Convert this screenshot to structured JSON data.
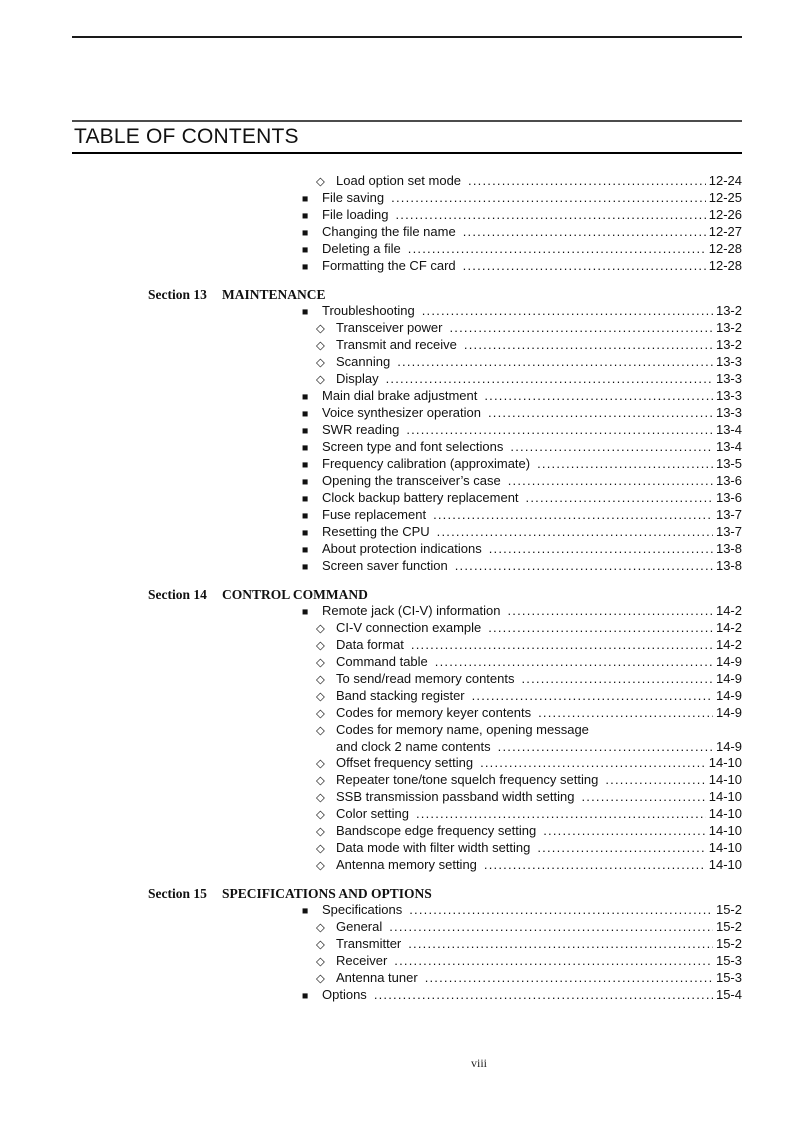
{
  "page": {
    "title": "TABLE OF CONTENTS",
    "page_number": "viii"
  },
  "bullets": {
    "main": "■",
    "sub": "◇"
  },
  "sections": [
    {
      "label": "",
      "title": "",
      "entries": [
        {
          "level": "sub",
          "text": "Load option set mode",
          "page": "12-24"
        },
        {
          "level": "main",
          "text": "File saving",
          "page": "12-25"
        },
        {
          "level": "main",
          "text": "File loading",
          "page": "12-26"
        },
        {
          "level": "main",
          "text": "Changing the file name",
          "page": "12-27"
        },
        {
          "level": "main",
          "text": "Deleting a file",
          "page": "12-28"
        },
        {
          "level": "main",
          "text": "Formatting the CF card",
          "page": "12-28"
        }
      ]
    },
    {
      "label": "Section 13",
      "title": "MAINTENANCE",
      "entries": [
        {
          "level": "main",
          "text": "Troubleshooting",
          "page": "13-2"
        },
        {
          "level": "sub",
          "text": "Transceiver power",
          "page": "13-2"
        },
        {
          "level": "sub",
          "text": "Transmit and receive",
          "page": "13-2"
        },
        {
          "level": "sub",
          "text": "Scanning",
          "page": "13-3"
        },
        {
          "level": "sub",
          "text": "Display",
          "page": "13-3"
        },
        {
          "level": "main",
          "text": "Main dial brake adjustment",
          "page": "13-3"
        },
        {
          "level": "main",
          "text": "Voice synthesizer operation",
          "page": "13-3"
        },
        {
          "level": "main",
          "text": "SWR reading",
          "page": "13-4"
        },
        {
          "level": "main",
          "text": "Screen type and font selections",
          "page": "13-4"
        },
        {
          "level": "main",
          "text": "Frequency calibration (approximate)",
          "page": "13-5"
        },
        {
          "level": "main",
          "text": "Opening the transceiver’s case",
          "page": "13-6"
        },
        {
          "level": "main",
          "text": "Clock backup battery replacement",
          "page": "13-6"
        },
        {
          "level": "main",
          "text": "Fuse replacement",
          "page": "13-7"
        },
        {
          "level": "main",
          "text": "Resetting the CPU",
          "page": "13-7"
        },
        {
          "level": "main",
          "text": "About protection indications",
          "page": "13-8"
        },
        {
          "level": "main",
          "text": "Screen saver function",
          "page": "13-8"
        }
      ]
    },
    {
      "label": "Section 14",
      "title": "CONTROL COMMAND",
      "entries": [
        {
          "level": "main",
          "text": "Remote jack (CI-V) information",
          "page": "14-2"
        },
        {
          "level": "sub",
          "text": "CI-V connection example",
          "page": "14-2"
        },
        {
          "level": "sub",
          "text": "Data format",
          "page": "14-2"
        },
        {
          "level": "sub",
          "text": "Command table",
          "page": "14-9"
        },
        {
          "level": "sub",
          "text": "To send/read memory contents",
          "page": "14-9"
        },
        {
          "level": "sub",
          "text": "Band stacking register",
          "page": "14-9"
        },
        {
          "level": "sub",
          "text": "Codes for memory keyer contents",
          "page": "14-9"
        },
        {
          "level": "sub",
          "text": "Codes for memory name, opening message",
          "text2": "and clock 2 name contents",
          "page": "14-9"
        },
        {
          "level": "sub",
          "text": "Offset frequency setting",
          "page": "14-10"
        },
        {
          "level": "sub",
          "text": "Repeater tone/tone squelch frequency setting",
          "page": "14-10"
        },
        {
          "level": "sub",
          "text": "SSB transmission passband width setting",
          "page": "14-10"
        },
        {
          "level": "sub",
          "text": "Color setting",
          "page": "14-10"
        },
        {
          "level": "sub",
          "text": "Bandscope edge frequency setting",
          "page": "14-10"
        },
        {
          "level": "sub",
          "text": "Data mode with filter width setting",
          "page": "14-10"
        },
        {
          "level": "sub",
          "text": "Antenna memory setting",
          "page": "14-10"
        }
      ]
    },
    {
      "label": "Section 15",
      "title": "SPECIFICATIONS AND OPTIONS",
      "entries": [
        {
          "level": "main",
          "text": "Specifications",
          "page": "15-2"
        },
        {
          "level": "sub",
          "text": "General",
          "page": "15-2"
        },
        {
          "level": "sub",
          "text": "Transmitter",
          "page": "15-2"
        },
        {
          "level": "sub",
          "text": "Receiver",
          "page": "15-3"
        },
        {
          "level": "sub",
          "text": "Antenna tuner",
          "page": "15-3"
        },
        {
          "level": "main",
          "text": "Options",
          "page": "15-4"
        }
      ]
    }
  ]
}
